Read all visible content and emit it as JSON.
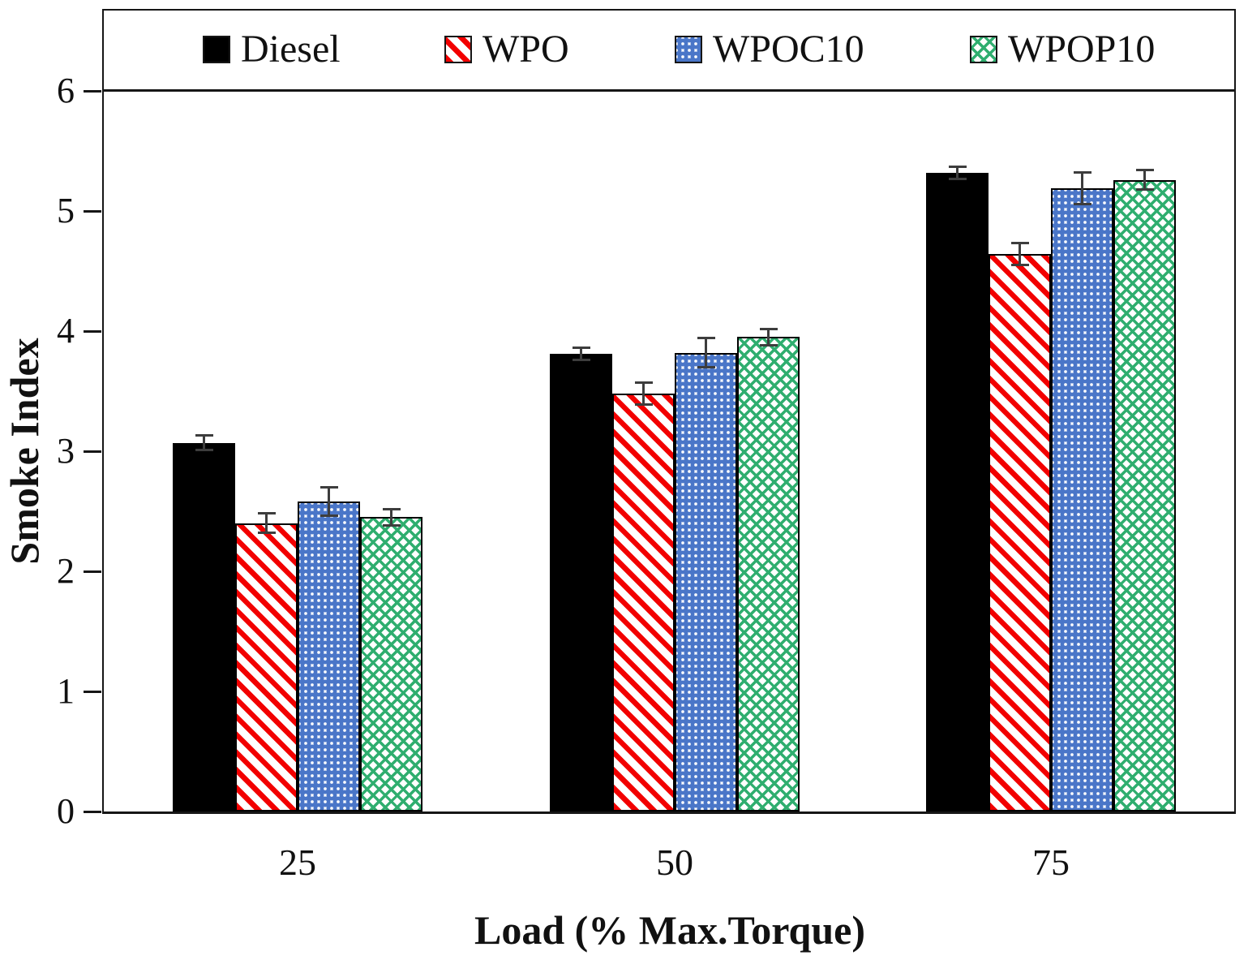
{
  "chart_data": {
    "type": "bar",
    "title": "",
    "xlabel": "Load (% Max.Torque)",
    "ylabel": "Smoke Index",
    "categories": [
      "25",
      "50",
      "75"
    ],
    "y_ticks": [
      "0",
      "1",
      "2",
      "3",
      "4",
      "5",
      "6"
    ],
    "ylim": [
      0,
      6
    ],
    "grid": false,
    "legend_position": "top",
    "error_bar_color": "#3d3d3d",
    "axis_color": "#161616",
    "series": [
      {
        "name": "Diesel",
        "pattern": "solid-black",
        "color": "#000000",
        "values": [
          3.07,
          3.81,
          5.32
        ],
        "errors": [
          0.07,
          0.06,
          0.06
        ]
      },
      {
        "name": "WPO",
        "pattern": "red-diagonal-stripes",
        "color": "#f20000",
        "values": [
          2.4,
          3.48,
          4.64
        ],
        "errors": [
          0.09,
          0.1,
          0.1
        ]
      },
      {
        "name": "WPOC10",
        "pattern": "blue-spheres",
        "color": "#4a76c8",
        "values": [
          2.58,
          3.82,
          5.19
        ],
        "errors": [
          0.13,
          0.13,
          0.14
        ]
      },
      {
        "name": "WPOP10",
        "pattern": "green-zigzag",
        "color": "#2fae6f",
        "values": [
          2.45,
          3.95,
          5.26
        ],
        "errors": [
          0.08,
          0.08,
          0.09
        ]
      }
    ]
  }
}
